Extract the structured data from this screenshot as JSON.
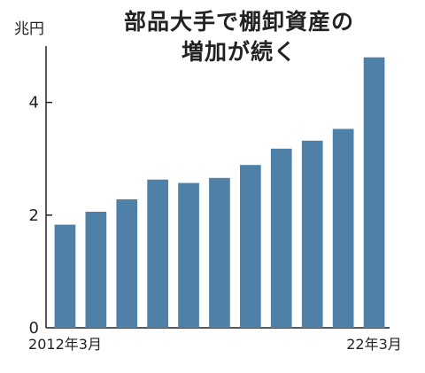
{
  "chart_data": {
    "type": "bar",
    "title_lines": [
      "部品大手で棚卸資産の",
      "増加が続く"
    ],
    "unit_label": "兆円",
    "ylim": [
      0,
      5
    ],
    "yticks": [
      0,
      2,
      4
    ],
    "categories": [
      "2012年3月",
      "",
      "",
      "",
      "",
      "",
      "",
      "",
      "",
      "",
      "22年3月"
    ],
    "values": [
      1.83,
      2.06,
      2.28,
      2.63,
      2.57,
      2.66,
      2.89,
      3.18,
      3.32,
      3.53,
      4.8
    ],
    "bar_color": "#4f81a8",
    "grid": false
  }
}
